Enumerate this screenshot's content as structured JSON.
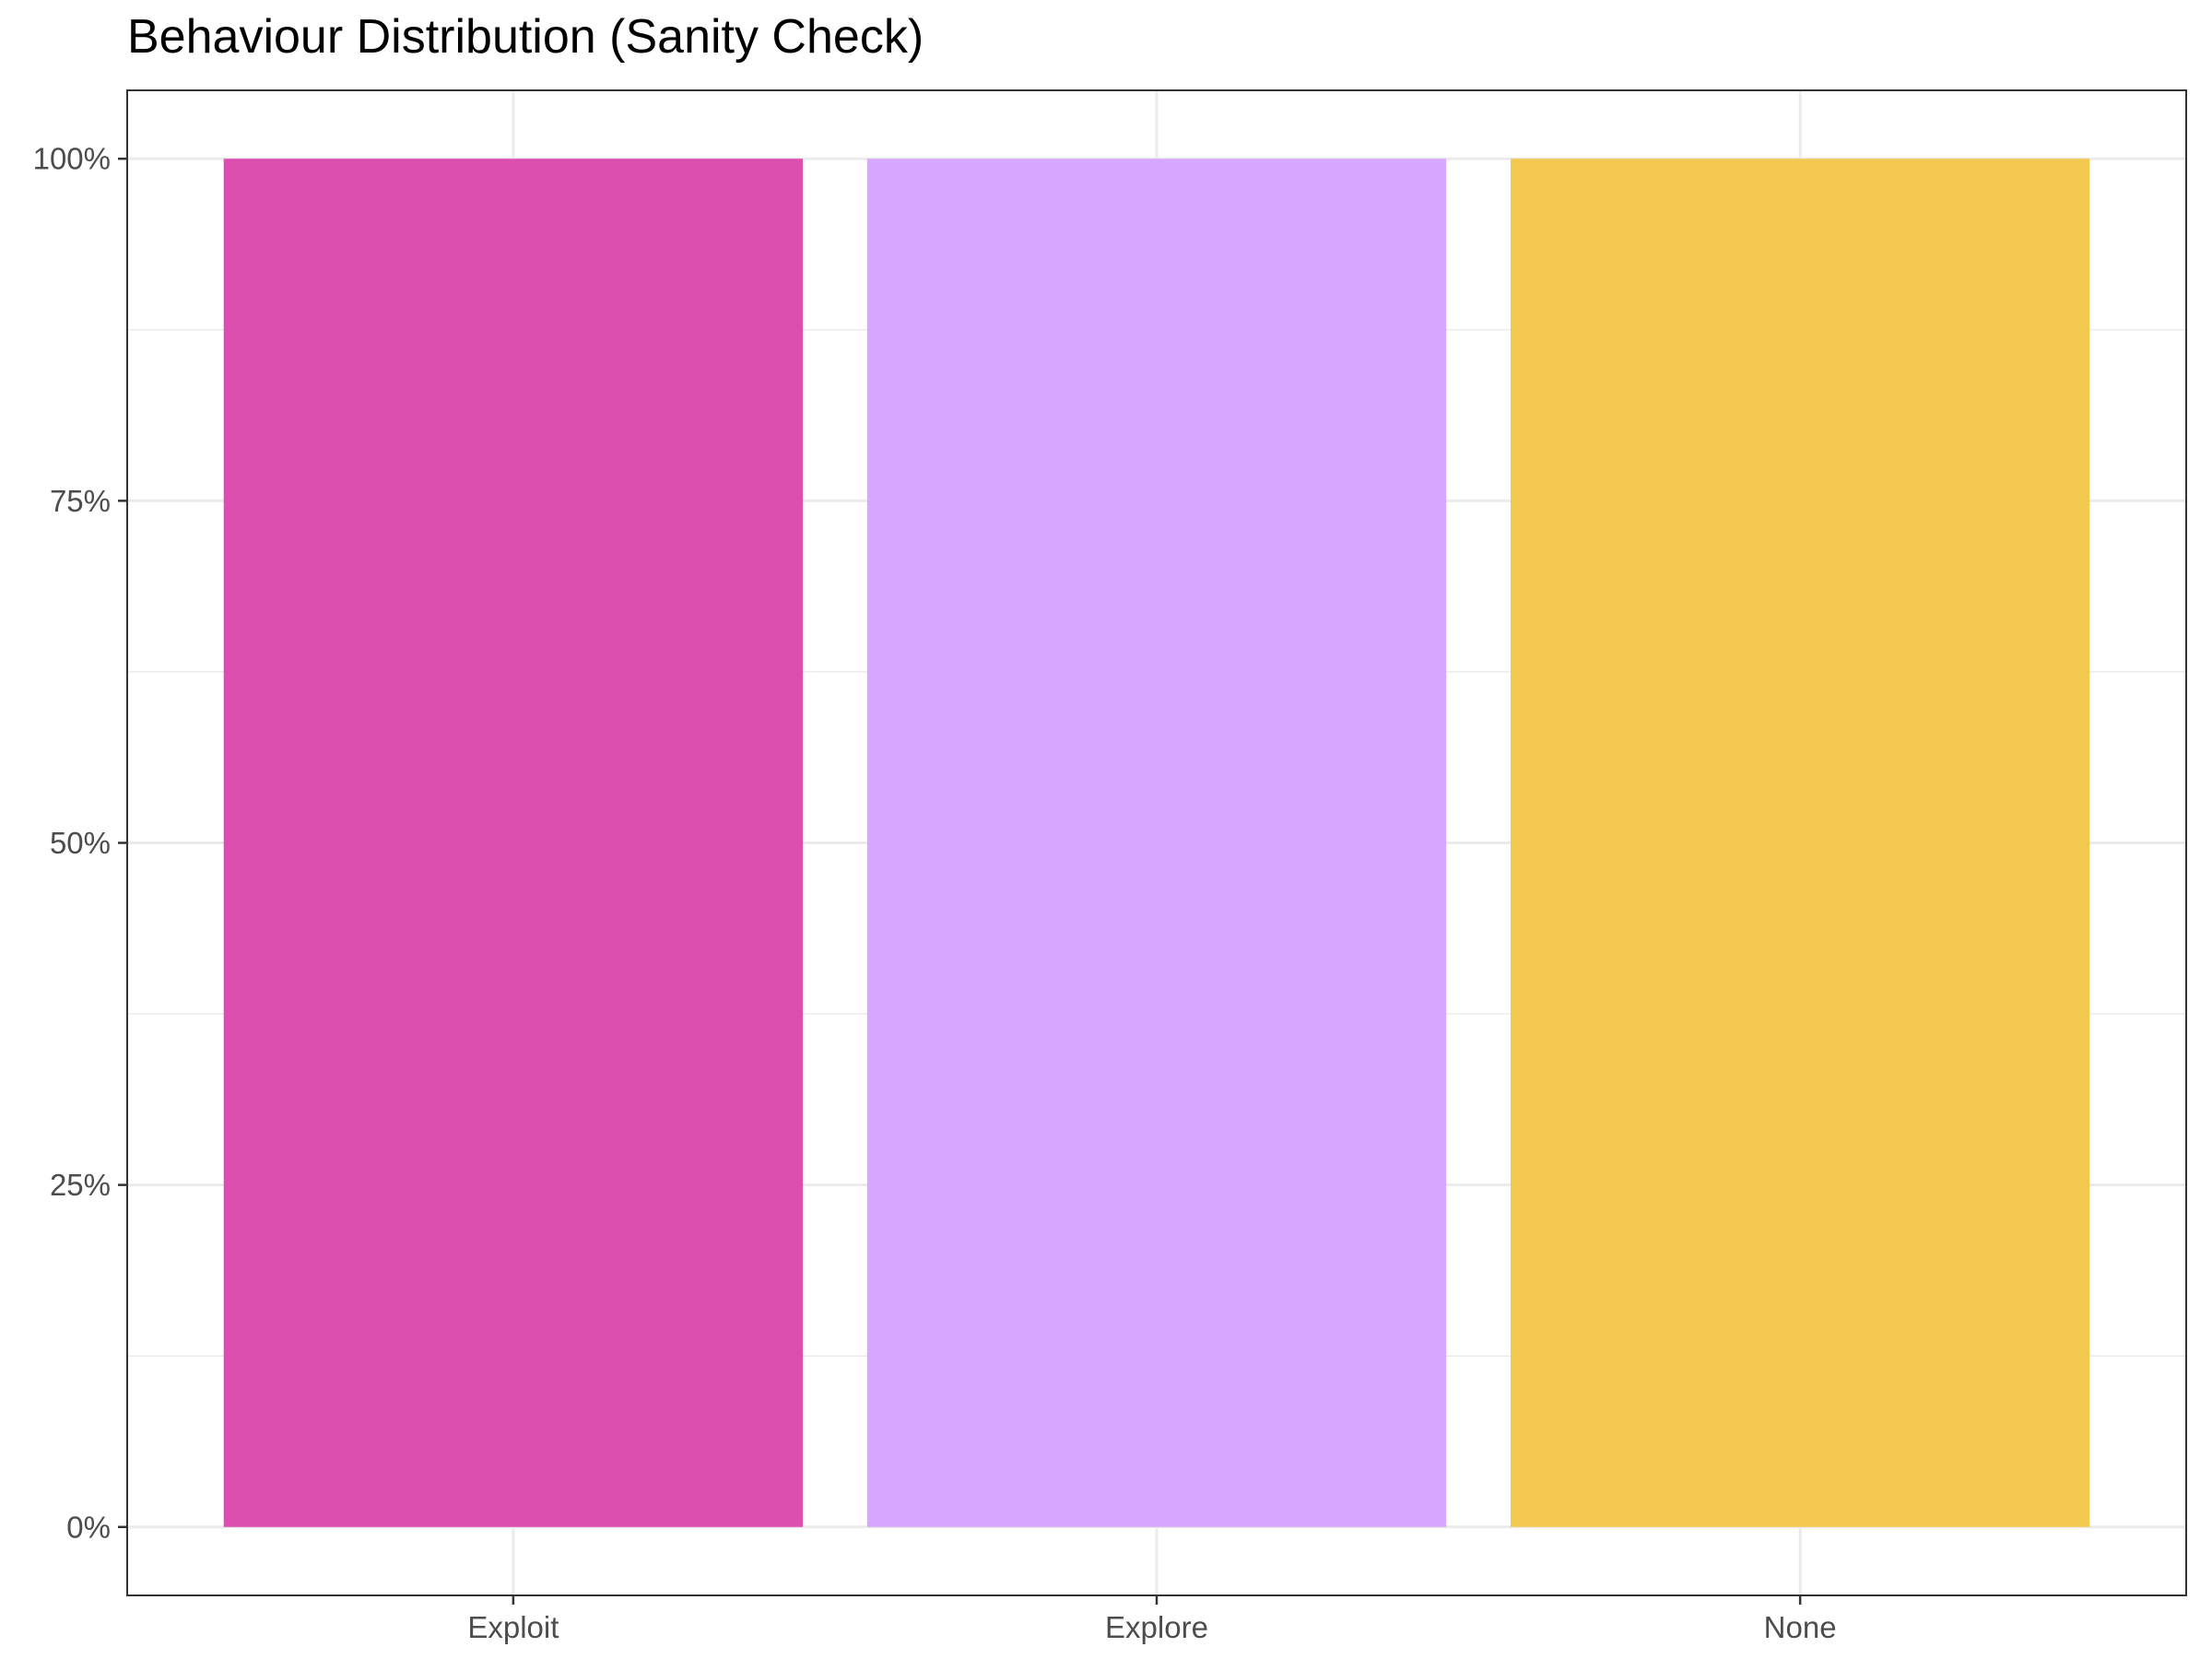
{
  "chart_data": {
    "type": "bar",
    "title": "Behaviour Distribution (Sanity Check)",
    "xlabel": "",
    "ylabel": "",
    "categories": [
      "Exploit",
      "Explore",
      "None"
    ],
    "values": [
      1.0,
      1.0,
      1.0
    ],
    "colors": [
      "#dc4fae",
      "#d7a6ff",
      "#f3c84e"
    ],
    "ylim": [
      -0.05,
      1.05
    ],
    "yticks": [
      0,
      0.25,
      0.5,
      0.75,
      1.0
    ],
    "ytick_labels": [
      "0%",
      "25%",
      "50%",
      "75%",
      "100%"
    ],
    "grid": true,
    "legend": "none"
  }
}
